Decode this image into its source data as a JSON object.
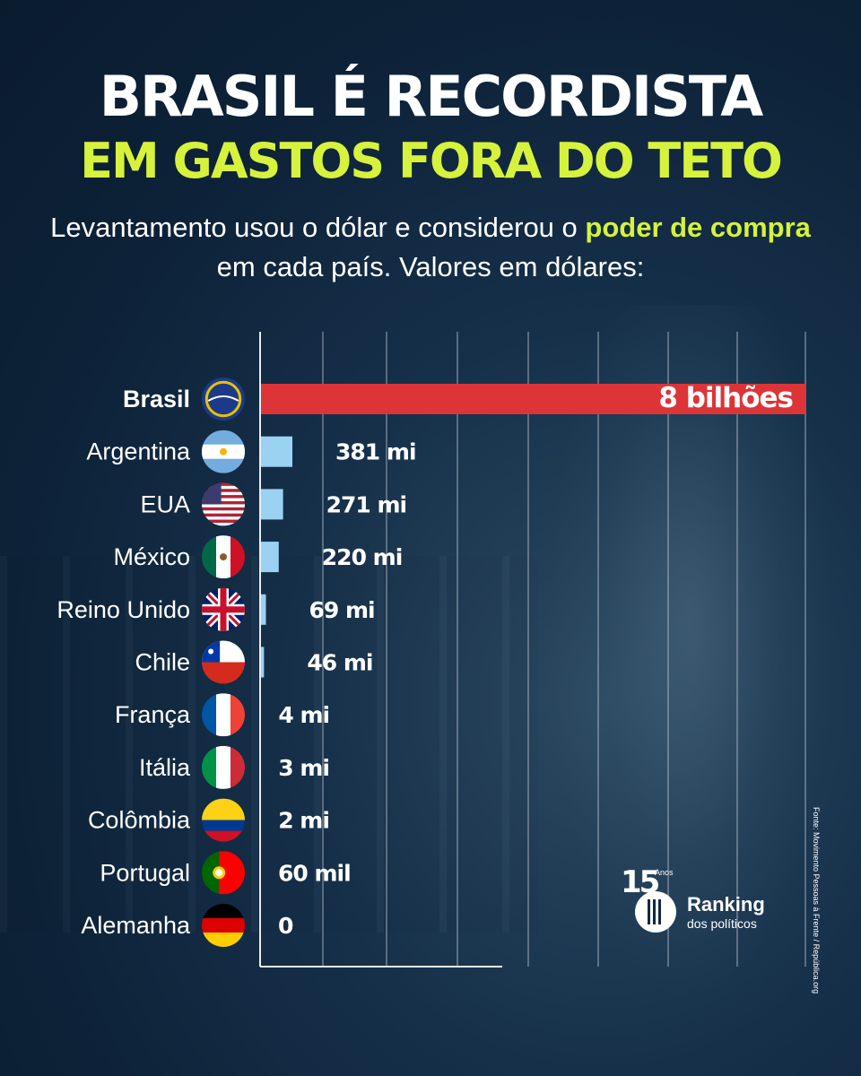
{
  "title_line1": "BRASIL É RECORDISTA",
  "title_line2": "EM GASTOS FORA DO TETO",
  "subtitle": {
    "part1": "Levantamento usou o dólar e considerou o ",
    "highlight": "poder de compra",
    "part2": " em cada país. Valores em dólares:"
  },
  "colors": {
    "accent_yellow": "#d6f23c",
    "brasil_bar": "#dd3438",
    "other_bars": "#9bd2f2",
    "background": "#0d2238"
  },
  "chart_data": {
    "type": "bar",
    "orientation": "horizontal",
    "categories": [
      "Brasil",
      "Argentina",
      "EUA",
      "México",
      "Reino Unido",
      "Chile",
      "França",
      "Itália",
      "Colômbia",
      "Portugal",
      "Alemanha"
    ],
    "values": [
      8000000000,
      381000000,
      271000000,
      220000000,
      69000000,
      46000000,
      4000000,
      3000000,
      2000000,
      60000,
      0
    ],
    "data_labels": [
      "8 bilhões",
      "381 mi",
      "271 mi",
      "220 mi",
      "69 mi",
      "46 mi",
      "4 mi",
      "3 mi",
      "2 mi",
      "60 mil",
      "0"
    ],
    "flag_icons": [
      "brazil-flag-icon",
      "argentina-flag-icon",
      "usa-flag-icon",
      "mexico-flag-icon",
      "uk-flag-icon",
      "chile-flag-icon",
      "france-flag-icon",
      "italy-flag-icon",
      "colombia-flag-icon",
      "portugal-flag-icon",
      "germany-flag-icon"
    ],
    "highlight_category": "Brasil",
    "grid": true,
    "xlabel": "",
    "ylabel": ""
  },
  "logo": {
    "years": "15",
    "years_label": "Anos",
    "name": "Ranking",
    "subname": "dos políticos"
  },
  "source": "Fonte: Movimento Pessoas à Frente / República.org"
}
